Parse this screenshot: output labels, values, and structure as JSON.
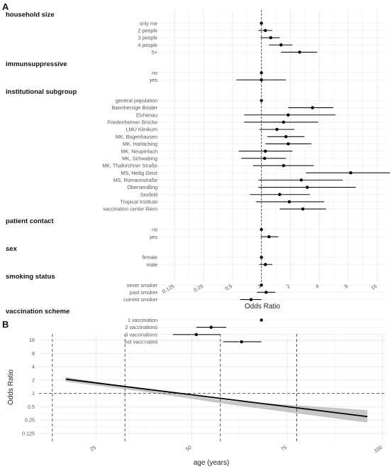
{
  "figure": {
    "panel_a_letter": "A",
    "panel_b_letter": "B"
  },
  "chart_data": [
    {
      "type": "scatter",
      "panel": "A",
      "xlabel": "Odds Ratio",
      "x_scale": "log2",
      "x_ticks": [
        0.125,
        0.25,
        0.5,
        1,
        2,
        4,
        8,
        16
      ],
      "x_tick_labels": [
        "0.125",
        "0.25",
        "0.5",
        "1",
        "2",
        "4",
        "8",
        "16"
      ],
      "xlim": [
        0.08,
        20
      ],
      "reference_line": 1,
      "groups": [
        {
          "name": "household size",
          "rows": [
            {
              "label": "only me",
              "or": 1.0,
              "lo": 1.0,
              "hi": 1.0
            },
            {
              "label": "2 people",
              "or": 1.1,
              "lo": 0.93,
              "hi": 1.3
            },
            {
              "label": "3 people",
              "or": 1.25,
              "lo": 0.98,
              "hi": 1.55
            },
            {
              "label": "4 people",
              "or": 1.6,
              "lo": 1.2,
              "hi": 2.1
            },
            {
              "label": "5+",
              "or": 2.5,
              "lo": 1.6,
              "hi": 3.8
            }
          ]
        },
        {
          "name": "immunsuppressive",
          "rows": [
            {
              "label": "no",
              "or": 1.0,
              "lo": 1.0,
              "hi": 1.0
            },
            {
              "label": "yes",
              "or": 1.0,
              "lo": 0.55,
              "hi": 1.8
            }
          ]
        },
        {
          "name": "institutional subgroup",
          "rows": [
            {
              "label": "general population",
              "or": 1.0,
              "lo": 1.0,
              "hi": 1.0
            },
            {
              "label": "Barmherzige Brüder",
              "or": 3.4,
              "lo": 1.9,
              "hi": 5.6
            },
            {
              "label": "Eichenau",
              "or": 1.9,
              "lo": 0.66,
              "hi": 5.9
            },
            {
              "label": "Friedenheimer Brücke",
              "or": 1.7,
              "lo": 0.66,
              "hi": 3.9
            },
            {
              "label": "LMU Klinikum",
              "or": 1.45,
              "lo": 0.95,
              "hi": 2.2
            },
            {
              "label": "MK, Bogenhausen",
              "or": 1.8,
              "lo": 1.15,
              "hi": 2.8
            },
            {
              "label": "MK, Harlaching",
              "or": 1.9,
              "lo": 1.1,
              "hi": 3.3
            },
            {
              "label": "MK, Neuperlach",
              "or": 1.1,
              "lo": 0.58,
              "hi": 2.1
            },
            {
              "label": "MK, Schwabing",
              "or": 1.08,
              "lo": 0.62,
              "hi": 1.8
            },
            {
              "label": "MK, Thalkirchner Straße",
              "or": 1.7,
              "lo": 0.82,
              "hi": 3.5
            },
            {
              "label": "MS, Heilig Geist",
              "or": 8.5,
              "lo": 2.9,
              "hi": 25.0
            },
            {
              "label": "MS, Rümannstraße",
              "or": 2.6,
              "lo": 0.93,
              "hi": 7.0
            },
            {
              "label": "Obersendling",
              "or": 3.0,
              "lo": 0.93,
              "hi": 9.6
            },
            {
              "label": "Seefeld",
              "or": 1.55,
              "lo": 0.76,
              "hi": 3.2
            },
            {
              "label": "Tropical Institute",
              "or": 1.95,
              "lo": 0.88,
              "hi": 4.5
            },
            {
              "label": "vaccination center Riem",
              "or": 2.7,
              "lo": 1.55,
              "hi": 4.7
            }
          ]
        },
        {
          "name": "patient contact",
          "rows": [
            {
              "label": "no",
              "or": 1.0,
              "lo": 1.0,
              "hi": 1.0
            },
            {
              "label": "yes",
              "or": 1.2,
              "lo": 0.98,
              "hi": 1.5
            }
          ]
        },
        {
          "name": "sex",
          "rows": [
            {
              "label": "female",
              "or": 1.0,
              "lo": 1.0,
              "hi": 1.0
            },
            {
              "label": "male",
              "or": 1.1,
              "lo": 0.95,
              "hi": 1.3
            }
          ]
        },
        {
          "name": "smoking status",
          "rows": [
            {
              "label": "never smoker",
              "or": 1.0,
              "lo": 1.0,
              "hi": 1.0
            },
            {
              "label": "past smoker",
              "or": 1.12,
              "lo": 0.9,
              "hi": 1.4
            },
            {
              "label": "current smoker",
              "or": 0.78,
              "lo": 0.6,
              "hi": 1.0
            }
          ]
        },
        {
          "name": "vaccination scheme",
          "rows": [
            {
              "label": "1 vaccination",
              "or": 1.0,
              "lo": 1.0,
              "hi": 1.0
            },
            {
              "label": "2 vaccinations",
              "or": 0.3,
              "lo": 0.21,
              "hi": 0.43
            },
            {
              "label": "3 vaccinations",
              "or": 0.21,
              "lo": 0.12,
              "hi": 0.37
            },
            {
              "label": "not vaccinated",
              "or": 0.62,
              "lo": 0.4,
              "hi": 1.0
            }
          ]
        }
      ]
    },
    {
      "type": "line",
      "panel": "B",
      "xlabel": "age (years)",
      "ylabel": "Odds Ratio",
      "y_scale": "log2",
      "x_ticks": [
        25,
        50,
        75,
        100
      ],
      "x_tick_labels": [
        "25",
        "50",
        "75",
        "100"
      ],
      "y_ticks": [
        0.125,
        0.25,
        0.5,
        1,
        2,
        4,
        8,
        16
      ],
      "y_tick_labels": [
        "0.125",
        "0.25",
        "0.5",
        "1",
        "2",
        "4",
        "8",
        "16"
      ],
      "xlim": [
        10,
        101
      ],
      "ylim": [
        0.08,
        22
      ],
      "reference_line_y": 1,
      "vertical_dashed_x": [
        13.5,
        32.5,
        57.5,
        77.5
      ],
      "line": {
        "x": [
          17,
          96
        ],
        "y": [
          2.1,
          0.3
        ]
      },
      "band_upper": {
        "x": [
          17,
          40,
          60,
          96
        ],
        "y": [
          2.35,
          1.14,
          0.68,
          0.42
        ]
      },
      "band_lower": {
        "x": [
          17,
          40,
          60,
          96
        ],
        "y": [
          1.85,
          1.02,
          0.56,
          0.22
        ]
      }
    }
  ]
}
